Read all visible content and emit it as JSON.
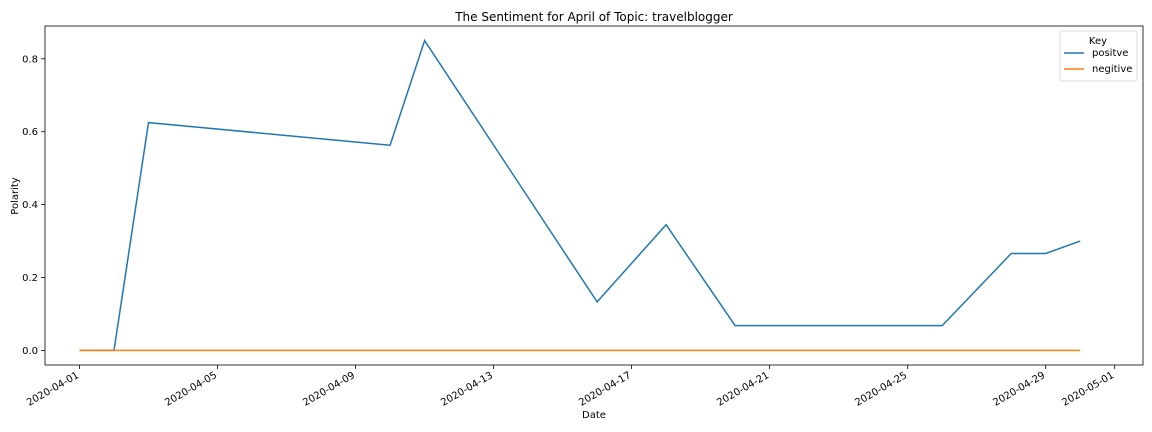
{
  "chart_data": {
    "type": "line",
    "title": "The Sentiment for April of Topic: travelblogger",
    "xlabel": "Date",
    "ylabel": "Polarity",
    "x": [
      "2020-04-01",
      "2020-04-02",
      "2020-04-03",
      "2020-04-10",
      "2020-04-11",
      "2020-04-16",
      "2020-04-18",
      "2020-04-20",
      "2020-04-26",
      "2020-04-28",
      "2020-04-29",
      "2020-04-30"
    ],
    "xticks": [
      "2020-04-01",
      "2020-04-05",
      "2020-04-09",
      "2020-04-13",
      "2020-04-17",
      "2020-04-21",
      "2020-04-25",
      "2020-04-29",
      "2020-05-01"
    ],
    "xlim": [
      "2020-03-31",
      "2020-05-01"
    ],
    "yticks": [
      "0.0",
      "0.2",
      "0.4",
      "0.6",
      "0.8"
    ],
    "ylim": [
      -0.04,
      0.89
    ],
    "grid": false,
    "legend": {
      "title": "Key",
      "placement": "top-right"
    },
    "series": [
      {
        "name": "positve",
        "color": "#1f77b4",
        "values": [
          0.0,
          0.0,
          0.625,
          0.563,
          0.85,
          0.133,
          0.345,
          0.068,
          0.068,
          0.266,
          0.266,
          0.3
        ]
      },
      {
        "name": "negitive",
        "color": "#ff7f0e",
        "values": [
          0,
          0,
          0,
          0,
          0,
          0,
          0,
          0,
          0,
          0,
          0,
          0
        ]
      }
    ]
  }
}
